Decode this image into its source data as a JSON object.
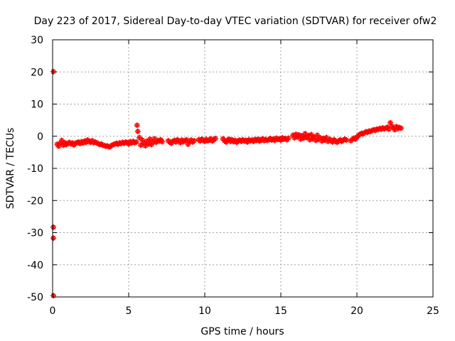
{
  "chart_data": {
    "type": "scatter",
    "title": "Day 223 of 2017, Sidereal Day-to-day VTEC variation (SDTVAR) for receiver ofw2",
    "xlabel": "GPS time / hours",
    "ylabel": "SDTVAR / TECUs",
    "xlim": [
      0,
      25
    ],
    "ylim": [
      -50,
      30
    ],
    "xticks": [
      0,
      5,
      10,
      15,
      20,
      25
    ],
    "yticks": [
      -50,
      -40,
      -30,
      -20,
      -10,
      0,
      10,
      20,
      30
    ],
    "grid": true,
    "legend": "none",
    "marker": "+",
    "colors": {
      "series": "#ff0000",
      "grid": "#a0a0a0",
      "axis": "#000000"
    },
    "series": [
      {
        "name": "SDTVAR",
        "note_marker": "plus",
        "x": [
          0.05,
          0.05,
          0.05,
          0.05,
          0.3,
          0.4,
          0.5,
          0.6,
          0.7,
          0.8,
          0.9,
          1.0,
          1.1,
          1.2,
          1.3,
          1.4,
          1.5,
          1.6,
          1.7,
          1.8,
          1.9,
          2.0,
          2.1,
          2.2,
          2.3,
          2.4,
          2.5,
          2.6,
          2.7,
          2.8,
          2.9,
          3.0,
          3.1,
          3.2,
          3.3,
          3.4,
          3.5,
          3.6,
          3.7,
          3.8,
          3.9,
          4.0,
          4.1,
          4.2,
          4.3,
          4.4,
          4.5,
          4.6,
          4.7,
          4.8,
          4.9,
          5.0,
          5.1,
          5.2,
          5.3,
          5.4,
          5.5,
          5.55,
          5.6,
          5.7,
          5.8,
          5.9,
          6.0,
          6.1,
          6.2,
          6.3,
          6.4,
          6.5,
          6.6,
          6.7,
          6.8,
          6.9,
          7.0,
          7.1,
          7.2,
          7.6,
          7.7,
          7.8,
          7.9,
          8.0,
          8.1,
          8.2,
          8.3,
          8.4,
          8.5,
          8.6,
          8.7,
          8.8,
          8.9,
          9.0,
          9.1,
          9.2,
          9.3,
          9.6,
          9.7,
          9.8,
          9.9,
          10.0,
          10.1,
          10.2,
          10.3,
          10.4,
          10.5,
          10.6,
          10.7,
          11.2,
          11.3,
          11.4,
          11.5,
          11.6,
          11.7,
          11.8,
          11.9,
          12.0,
          12.1,
          12.2,
          12.3,
          12.4,
          12.5,
          12.6,
          12.7,
          12.8,
          12.9,
          13.0,
          13.1,
          13.2,
          13.3,
          13.4,
          13.5,
          13.6,
          13.7,
          13.8,
          13.9,
          14.0,
          14.1,
          14.2,
          14.3,
          14.4,
          14.5,
          14.6,
          14.7,
          14.8,
          14.9,
          15.0,
          15.1,
          15.2,
          15.3,
          15.4,
          15.5,
          15.8,
          15.9,
          16.0,
          16.1,
          16.2,
          16.3,
          16.4,
          16.5,
          16.6,
          16.7,
          16.8,
          16.9,
          17.0,
          17.1,
          17.2,
          17.3,
          17.4,
          17.5,
          17.6,
          17.7,
          17.8,
          17.9,
          18.0,
          18.1,
          18.2,
          18.3,
          18.4,
          18.5,
          18.6,
          18.7,
          18.8,
          18.9,
          19.0,
          19.1,
          19.2,
          19.3,
          19.6,
          19.7,
          19.8,
          19.9,
          20.0,
          20.1,
          20.2,
          20.3,
          20.4,
          20.5,
          20.6,
          20.7,
          20.8,
          20.9,
          21.0,
          21.1,
          21.2,
          21.3,
          21.4,
          21.5,
          21.6,
          21.7,
          21.8,
          21.9,
          22.0,
          22.1,
          22.2,
          22.3,
          22.4,
          22.5,
          22.6,
          22.7,
          22.8,
          22.9
        ],
        "y": [
          20.1,
          -28.3,
          -31.7,
          -49.6,
          -2.5,
          -3.1,
          -2.2,
          -1.3,
          -2.8,
          -2.0,
          -2.6,
          -2.3,
          -1.9,
          -2.4,
          -2.1,
          -2.7,
          -2.2,
          -2.0,
          -1.8,
          -2.3,
          -1.7,
          -2.1,
          -1.5,
          -1.9,
          -1.2,
          -1.6,
          -1.9,
          -1.4,
          -2.0,
          -1.8,
          -2.1,
          -2.3,
          -2.6,
          -2.4,
          -2.8,
          -2.9,
          -3.1,
          -3.0,
          -3.3,
          -3.2,
          -2.8,
          -2.6,
          -2.4,
          -2.2,
          -2.5,
          -2.1,
          -2.3,
          -1.9,
          -2.2,
          -1.8,
          -2.0,
          -2.4,
          -1.7,
          -2.1,
          -1.6,
          -2.0,
          -1.8,
          3.4,
          1.5,
          -0.4,
          -2.8,
          -1.2,
          -2.1,
          -3.0,
          -1.5,
          -2.4,
          -0.9,
          -2.6,
          -1.7,
          -0.8,
          -1.9,
          -1.3,
          -1.5,
          -1.1,
          -1.7,
          -1.4,
          -1.9,
          -2.2,
          -1.6,
          -1.3,
          -1.8,
          -1.1,
          -1.5,
          -2.0,
          -1.2,
          -1.7,
          -1.4,
          -1.1,
          -2.5,
          -1.6,
          -1.2,
          -1.8,
          -1.4,
          -1.1,
          -1.5,
          -0.9,
          -1.3,
          -1.6,
          -1.0,
          -1.4,
          -1.2,
          -0.8,
          -1.5,
          -1.1,
          -0.7,
          -0.8,
          -1.4,
          -1.8,
          -1.2,
          -0.9,
          -1.6,
          -1.1,
          -1.7,
          -1.3,
          -1.9,
          -1.4,
          -1.2,
          -1.6,
          -1.1,
          -1.5,
          -1.3,
          -1.8,
          -1.1,
          -1.4,
          -1.2,
          -1.6,
          -1.0,
          -1.3,
          -0.9,
          -1.5,
          -1.2,
          -0.8,
          -1.4,
          -1.0,
          -1.3,
          -1.1,
          -0.7,
          -1.2,
          -0.9,
          -1.3,
          -0.6,
          -1.0,
          -0.8,
          -1.2,
          -0.5,
          -0.9,
          -0.7,
          -1.1,
          -0.6,
          0.3,
          -0.5,
          0.6,
          -0.2,
          0.4,
          -0.9,
          0.1,
          -0.6,
          0.8,
          -0.4,
          0.2,
          -1.1,
          0.5,
          -0.8,
          -0.2,
          -1.3,
          0.3,
          -1.0,
          -0.5,
          -1.5,
          -0.7,
          -1.2,
          -0.4,
          -1.6,
          -0.9,
          -1.3,
          -1.8,
          -1.1,
          -1.5,
          -1.9,
          -1.4,
          -1.1,
          -1.6,
          -1.3,
          -0.9,
          -1.2,
          -1.4,
          -1.0,
          -0.6,
          -0.9,
          -0.3,
          0.2,
          0.6,
          0.9,
          0.7,
          1.1,
          1.4,
          1.2,
          1.6,
          1.5,
          1.8,
          2.0,
          1.8,
          2.2,
          2.1,
          2.4,
          2.2,
          2.6,
          2.3,
          2.5,
          2.8,
          2.2,
          4.2,
          3.1,
          2.6,
          2.0,
          3.0,
          2.4,
          2.7,
          2.5
        ]
      }
    ]
  }
}
